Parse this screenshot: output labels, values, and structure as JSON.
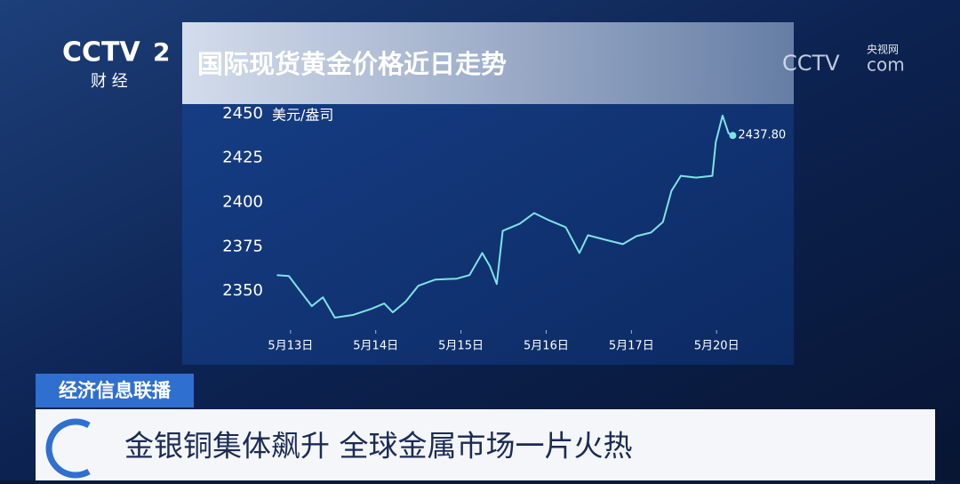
{
  "overlay": {
    "channel": "CCTV",
    "channel_number": "2",
    "channel_name": "财 经",
    "site_cn": "央视网",
    "site_logo": "CCTV",
    "site_suffix": "com",
    "program": "经济信息联播",
    "headline": "金银铜集体飙升 全球金属市场一片火热"
  },
  "chart_data": {
    "type": "line",
    "title": "国际现货黄金价格近日走势",
    "y_label": "美元/盎司",
    "xlim": [
      -0.28,
      5.77
    ],
    "ylim": [
      2331,
      2459
    ],
    "xticks": [
      {
        "value": 0,
        "label": "5月13日"
      },
      {
        "value": 1,
        "label": "5月14日"
      },
      {
        "value": 2,
        "label": "5月15日"
      },
      {
        "value": 3,
        "label": "5月16日"
      },
      {
        "value": 4,
        "label": "5月17日"
      },
      {
        "value": 5,
        "label": "5月20日"
      }
    ],
    "yticks": [
      2350,
      2375,
      2400,
      2425,
      2450
    ],
    "series": [
      {
        "name": "国际现货黄金",
        "color": "#7fe3e6",
        "x": [
          -0.16,
          -0.02,
          0.09,
          0.25,
          0.38,
          0.52,
          0.73,
          0.95,
          1.1,
          1.2,
          1.35,
          1.5,
          1.7,
          1.95,
          2.1,
          2.25,
          2.34,
          2.42,
          2.49,
          2.69,
          2.86,
          3.03,
          3.23,
          3.39,
          3.49,
          3.69,
          3.9,
          4.06,
          4.23,
          4.37,
          4.47,
          4.58,
          4.76,
          4.95,
          4.99,
          5.07,
          5.14,
          5.19
        ],
        "values": [
          2359,
          2358.5,
          2351.5,
          2341.5,
          2346.5,
          2335,
          2336.5,
          2340,
          2343,
          2338,
          2344,
          2353,
          2356.5,
          2357,
          2359,
          2371.5,
          2364,
          2354,
          2384,
          2388,
          2394,
          2390,
          2386,
          2371.5,
          2381.5,
          2379,
          2376.5,
          2381,
          2383,
          2389,
          2406.5,
          2415,
          2414,
          2415,
          2434,
          2449,
          2439,
          2437.8
        ],
        "value_labels": [
          null,
          null,
          null,
          null,
          null,
          null,
          null,
          null,
          null,
          null,
          null,
          null,
          null,
          null,
          null,
          null,
          null,
          null,
          null,
          null,
          null,
          null,
          null,
          null,
          null,
          null,
          null,
          null,
          null,
          null,
          null,
          null,
          null,
          null,
          null,
          null,
          null,
          "2437.80"
        ]
      }
    ]
  }
}
